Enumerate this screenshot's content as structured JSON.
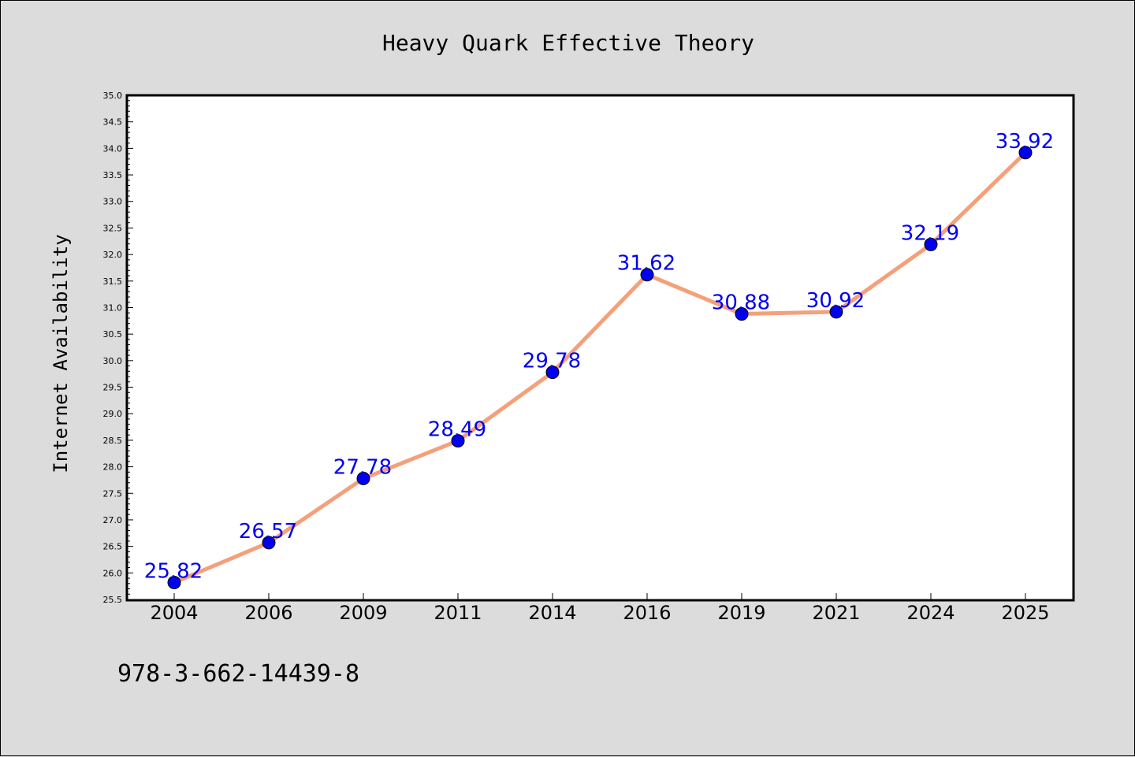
{
  "chart_data": {
    "type": "line",
    "title": "Heavy Quark Effective Theory",
    "xlabel": "",
    "ylabel": "Internet Availability",
    "categories": [
      "2004",
      "2006",
      "2009",
      "2011",
      "2014",
      "2016",
      "2019",
      "2021",
      "2024",
      "2025"
    ],
    "series": [
      {
        "values": [
          25.82,
          26.57,
          27.78,
          28.49,
          29.78,
          31.62,
          30.88,
          30.92,
          32.19,
          33.92
        ],
        "data_labels": [
          "25.82",
          "26.57",
          "27.78",
          "28.49",
          "29.78",
          "31.62",
          "30.88",
          "30.92",
          "32.19",
          "33.92"
        ],
        "line_color": "#f4a07a",
        "marker_color": "#0000ee"
      }
    ],
    "ylim": [
      25.5,
      35.0
    ],
    "yticks": [
      "25.5",
      "26.0",
      "26.5",
      "27.0",
      "27.5",
      "28.0",
      "28.5",
      "29.0",
      "29.5",
      "30.0",
      "30.5",
      "31.0",
      "31.5",
      "32.0",
      "32.5",
      "33.0",
      "33.5",
      "34.0",
      "34.5",
      "35.0"
    ],
    "grid": false,
    "legend": "none"
  },
  "footer_text": "978-3-662-14439-8",
  "colors": {
    "background": "#dcdcdc",
    "plot_background": "#ffffff",
    "label_color": "#0000ee"
  }
}
